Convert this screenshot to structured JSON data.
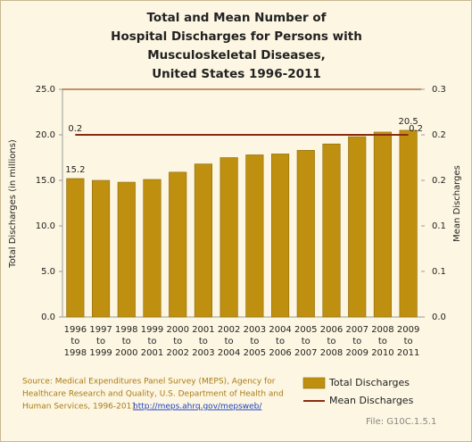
{
  "chart_data": {
    "type": "bar",
    "title": [
      "Total and Mean Number of",
      "Hospital Discharges for Persons with",
      "Musculoskeletal Diseases,",
      "United States 1996-2011"
    ],
    "categories": [
      [
        "1996",
        "to",
        "1998"
      ],
      [
        "1997",
        "to",
        "1999"
      ],
      [
        "1998",
        "to",
        "2000"
      ],
      [
        "1999",
        "to",
        "2001"
      ],
      [
        "2000",
        "to",
        "2002"
      ],
      [
        "2001",
        "to",
        "2003"
      ],
      [
        "2002",
        "to",
        "2004"
      ],
      [
        "2003",
        "to",
        "2005"
      ],
      [
        "2004",
        "to",
        "2006"
      ],
      [
        "2005",
        "to",
        "2007"
      ],
      [
        "2006",
        "to",
        "2008"
      ],
      [
        "2007",
        "to",
        "2009"
      ],
      [
        "2008",
        "to",
        "2010"
      ],
      [
        "2009",
        "to",
        "2011"
      ]
    ],
    "series": [
      {
        "name": "Total Discharges",
        "color": "#bf900f",
        "values": [
          15.2,
          15.0,
          14.8,
          15.1,
          15.9,
          16.8,
          17.5,
          17.8,
          17.9,
          18.3,
          19.0,
          19.8,
          20.3,
          20.5
        ],
        "value_labels": [
          "15.2",
          null,
          null,
          null,
          null,
          null,
          null,
          null,
          null,
          null,
          null,
          null,
          null,
          "20.5"
        ]
      },
      {
        "name": "Mean Discharges",
        "type": "line",
        "axis": "y2",
        "color": "#8b2c12",
        "values": [
          0.24,
          0.24,
          0.24,
          0.24,
          0.24,
          0.24,
          0.24,
          0.24,
          0.24,
          0.24,
          0.24,
          0.24,
          0.24,
          0.24
        ],
        "value_labels": [
          "0.2",
          null,
          null,
          null,
          null,
          null,
          null,
          null,
          null,
          null,
          null,
          null,
          null,
          "0.2"
        ]
      }
    ],
    "ylabel": "Total Discharges (in millions)",
    "y2label": "Mean Discharges",
    "ylim": [
      0,
      25
    ],
    "yticks": [
      {
        "value": 0,
        "label": "0.0"
      },
      {
        "value": 5,
        "label": "5.0"
      },
      {
        "value": 10,
        "label": "10.0"
      },
      {
        "value": 15,
        "label": "15.0"
      },
      {
        "value": 20,
        "label": "20.0"
      },
      {
        "value": 25,
        "label": "25.0"
      }
    ],
    "y2lim": [
      0,
      0.3
    ],
    "y2ticks": [
      {
        "value": 0,
        "label": "0.0"
      },
      {
        "value": 0.06,
        "label": "0.1"
      },
      {
        "value": 0.12,
        "label": "0.1"
      },
      {
        "value": 0.18,
        "label": "0.2"
      },
      {
        "value": 0.24,
        "label": "0.2"
      },
      {
        "value": 0.3,
        "label": "0.3"
      }
    ],
    "grid": false,
    "legend": "bottom-right",
    "source": [
      "Source: Medical Expenditures Panel Survey (MEPS), Agency for",
      "Healthcare Research and Quality, U.S. Department of Health and",
      "Human Services, 1996-2011"
    ],
    "source_link": "http://meps.ahrq.gov/mepsweb/",
    "file": "File: G10C.1.5.1"
  }
}
